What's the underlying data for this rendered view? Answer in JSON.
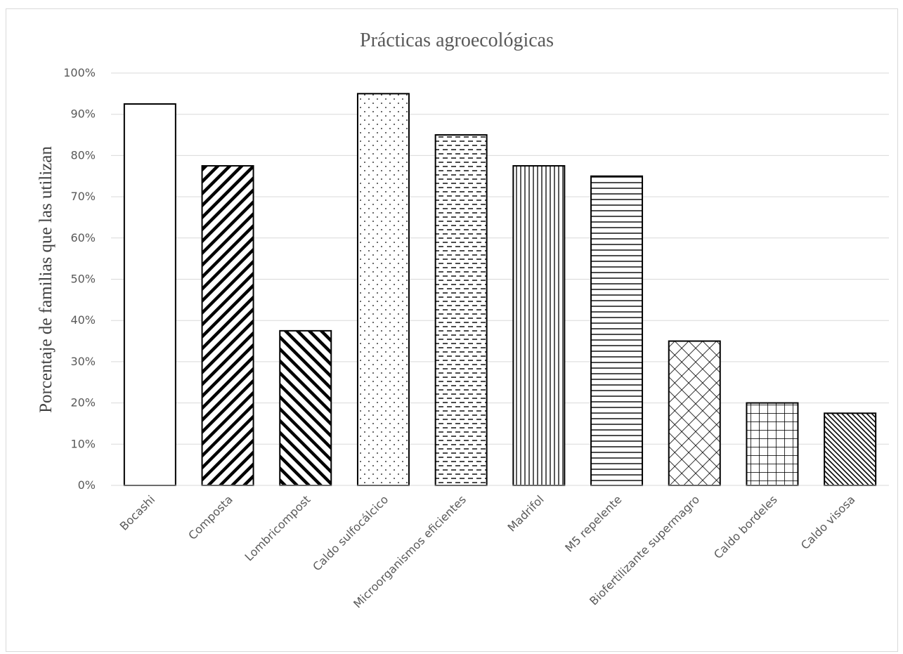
{
  "chart_data": {
    "type": "bar",
    "title": "Prácticas agroecológicas",
    "xlabel": "",
    "ylabel": "Porcentaje de familias que las utilizan",
    "ylim": [
      0,
      100
    ],
    "y_tick_step": 10,
    "y_tick_suffix": "%",
    "grid": true,
    "categories": [
      "Bocashi",
      "Composta",
      "Lombricompost",
      "Caldo sulfocálcico",
      "Microorganismos eficientes",
      "Madrifol",
      "M5 repelente",
      "Biofertilizante supermagro",
      "Caldo bordeles",
      "Caldo visosa"
    ],
    "values": [
      92.5,
      77.5,
      37.5,
      95,
      85,
      77.5,
      75,
      35,
      20,
      17.5
    ],
    "patterns": [
      "solid-white",
      "diagonal-down-wide",
      "diagonal-up-wide",
      "dots",
      "dashed-horizontal",
      "vertical-lines",
      "horizontal-lines",
      "diagonal-crosshatch",
      "grid",
      "diagonal-up-fine"
    ],
    "colors": {
      "bar_stroke": "#000000",
      "grid": "#d9d9d9",
      "text": "#595959"
    }
  }
}
